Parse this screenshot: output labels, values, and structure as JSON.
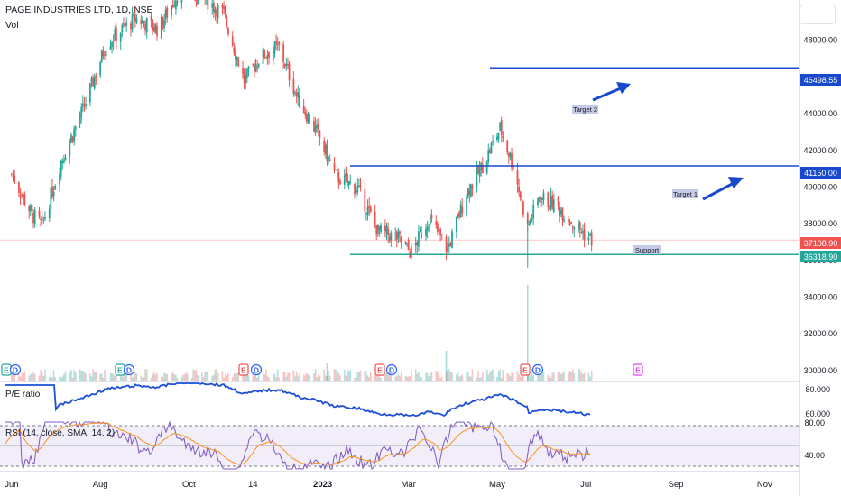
{
  "header": {
    "symbol": "PAGE INDUSTRIES LTD, 1D, NSE",
    "volume_label": "Vol"
  },
  "panes": {
    "pe_label": "P/E ratio",
    "rsi_label": "RSI (14, close, SMA, 14, 2)"
  },
  "annotations": {
    "target1": "Target 1",
    "target2": "Target 2",
    "support": "Support"
  },
  "price_tags": {
    "target2": "46498.55",
    "target1": "41150.00",
    "last": "37108.90",
    "support": "36318.90"
  },
  "colors": {
    "up": "#26a69a",
    "down": "#ef5350",
    "level_line": "#1848cc",
    "support_line": "#26a69a",
    "pe_line": "#1e4fd8",
    "rsi_line": "#7e57c2",
    "rsi_sma": "#f7931a",
    "earnings_green": "#26a69a",
    "earnings_red": "#ef5350",
    "earnings_blue": "#2962ff",
    "earnings_future": "#e040fb"
  },
  "chart_data": [
    {
      "type": "candlestick",
      "title": "PAGE INDUSTRIES LTD, 1D, NSE",
      "x_tick_labels": [
        "Jun",
        "Aug",
        "Oct",
        "14",
        "2023",
        "Mar",
        "May",
        "Jul",
        "Sep",
        "Nov"
      ],
      "y_tick_labels": [
        "30000.00",
        "32000.00",
        "34000.00",
        "36000.00",
        "38000.00",
        "40000.00",
        "42000.00",
        "44000.00",
        "46000.00",
        "48000.00"
      ],
      "ylim": [
        29400,
        50200
      ],
      "approx_close_path": [
        {
          "x": "2022-06-01",
          "y": 40700
        },
        {
          "x": "2022-06-15",
          "y": 38500
        },
        {
          "x": "2022-06-22",
          "y": 37900
        },
        {
          "x": "2022-07-05",
          "y": 41400
        },
        {
          "x": "2022-07-20",
          "y": 44200
        },
        {
          "x": "2022-08-05",
          "y": 47800
        },
        {
          "x": "2022-08-25",
          "y": 49200
        },
        {
          "x": "2022-09-10",
          "y": 48600
        },
        {
          "x": "2022-09-25",
          "y": 50800
        },
        {
          "x": "2022-10-10",
          "y": 50400
        },
        {
          "x": "2022-10-25",
          "y": 49400
        },
        {
          "x": "2022-11-08",
          "y": 45800
        },
        {
          "x": "2022-11-20",
          "y": 47200
        },
        {
          "x": "2022-12-02",
          "y": 47600
        },
        {
          "x": "2022-12-15",
          "y": 44800
        },
        {
          "x": "2022-12-28",
          "y": 43000
        },
        {
          "x": "2023-01-10",
          "y": 40600
        },
        {
          "x": "2023-01-25",
          "y": 39900
        },
        {
          "x": "2023-02-08",
          "y": 37600
        },
        {
          "x": "2023-02-22",
          "y": 37200
        },
        {
          "x": "2023-03-03",
          "y": 36400
        },
        {
          "x": "2023-03-15",
          "y": 38300
        },
        {
          "x": "2023-03-28",
          "y": 36600
        },
        {
          "x": "2023-04-10",
          "y": 39700
        },
        {
          "x": "2023-04-20",
          "y": 41000
        },
        {
          "x": "2023-05-03",
          "y": 43200
        },
        {
          "x": "2023-05-12",
          "y": 41200
        },
        {
          "x": "2023-05-22",
          "y": 37800
        },
        {
          "x": "2023-05-30",
          "y": 39500
        },
        {
          "x": "2023-06-12",
          "y": 38900
        },
        {
          "x": "2023-06-25",
          "y": 37800
        },
        {
          "x": "2023-07-05",
          "y": 37100
        }
      ],
      "horizontal_levels": [
        {
          "label": "Target 2",
          "value": 46498.55
        },
        {
          "label": "Target 1",
          "value": 41150.0
        },
        {
          "label": "Support",
          "value": 36318.9
        },
        {
          "label": "last",
          "value": 37108.9
        }
      ]
    },
    {
      "type": "line",
      "title": "P/E ratio",
      "y_tick_labels": [
        "80.000",
        "60.000"
      ]
    },
    {
      "type": "line",
      "title": "RSI (14, close, SMA, 14, 2)",
      "y_tick_labels": [
        "80.00",
        "40.00"
      ]
    }
  ]
}
